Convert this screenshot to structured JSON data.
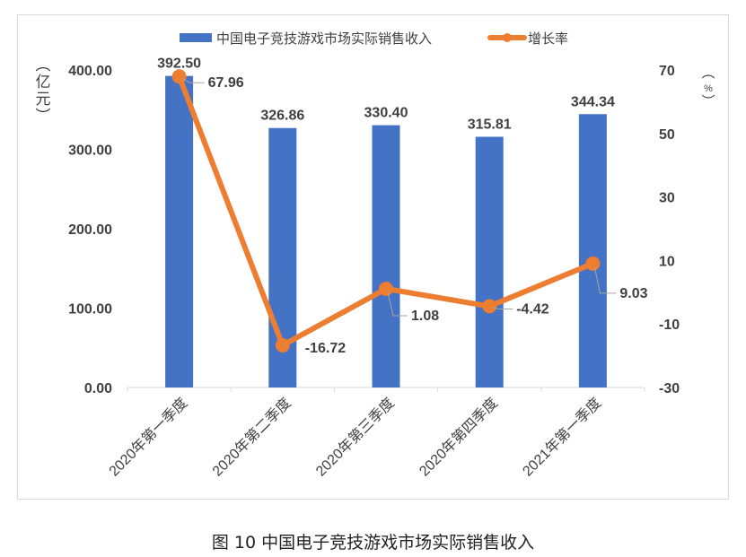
{
  "chart_data": {
    "type": "bar+line",
    "title": "",
    "caption": "图 10  中国电子竞技游戏市场实际销售收入",
    "categories": [
      "2020年第一季度",
      "2020年第二季度",
      "2020年第三季度",
      "2020年第四季度",
      "2021年第一季度"
    ],
    "series": [
      {
        "name": "中国电子竞技游戏市场实际销售收入",
        "type": "bar",
        "axis": "left",
        "color": "#4472C4",
        "values": [
          392.5,
          326.86,
          330.4,
          315.81,
          344.34
        ],
        "labels": [
          "392.50",
          "326.86",
          "330.40",
          "315.81",
          "344.34"
        ]
      },
      {
        "name": "增长率",
        "type": "line",
        "axis": "right",
        "color": "#ED7D31",
        "values": [
          67.96,
          -16.72,
          1.08,
          -4.42,
          9.03
        ],
        "labels": [
          "67.96",
          "-16.72",
          "1.08",
          "-4.42",
          "9.03"
        ]
      }
    ],
    "left_axis": {
      "label": "（亿元）",
      "ylim": [
        0,
        400
      ],
      "ticks": [
        "0.00",
        "100.00",
        "200.00",
        "300.00",
        "400.00"
      ]
    },
    "right_axis": {
      "label": "（%）",
      "ylim": [
        -30,
        70
      ],
      "ticks": [
        "-30",
        "-10",
        "10",
        "30",
        "50",
        "70"
      ]
    },
    "legend_position": "top",
    "grid": false
  }
}
